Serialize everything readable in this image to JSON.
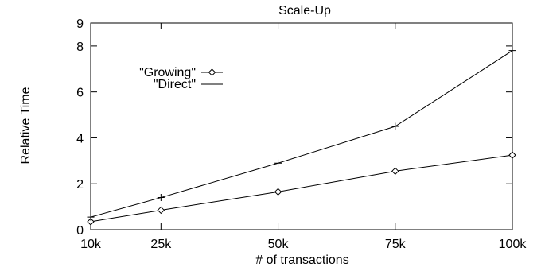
{
  "chart_data": {
    "type": "line",
    "title": "Scale-Up",
    "xlabel": "# of transactions",
    "ylabel": "Relative Time",
    "categories": [
      "10k",
      "25k",
      "50k",
      "75k",
      "100k"
    ],
    "x": [
      10,
      25,
      50,
      75,
      100
    ],
    "xlim": [
      10,
      100
    ],
    "ylim": [
      0,
      9
    ],
    "yticks": [
      0,
      2,
      4,
      6,
      8,
      9
    ],
    "grid": false,
    "legend_position": "top-left",
    "series": [
      {
        "name": "\"Growing\"",
        "marker": "diamond",
        "values": [
          0.35,
          0.85,
          1.65,
          2.55,
          3.25
        ]
      },
      {
        "name": "\"Direct\"",
        "marker": "plus",
        "values": [
          0.55,
          1.4,
          2.9,
          4.5,
          7.8
        ]
      }
    ]
  }
}
